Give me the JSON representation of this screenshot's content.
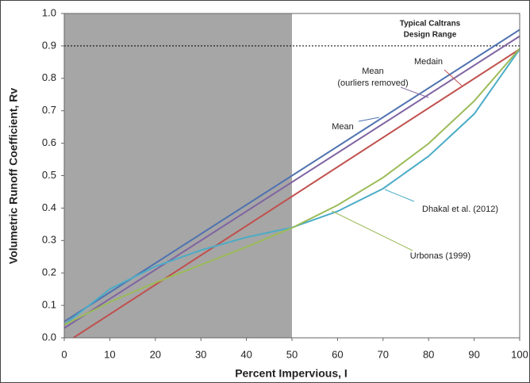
{
  "chart_data": {
    "type": "line",
    "x_label": "Percent Impervious, I",
    "y_label": "Volumetric Runoff Coefficient, Rv",
    "xlim": [
      0,
      100
    ],
    "ylim": [
      0,
      1
    ],
    "xticks": [
      0,
      10,
      20,
      30,
      40,
      50,
      60,
      70,
      80,
      90,
      100
    ],
    "yticks": [
      {
        "value": 0,
        "label": "0.0"
      },
      0.1,
      0.2,
      0.3,
      0.4,
      0.5,
      0.6,
      0.7,
      0.8,
      0.9,
      {
        "value": 1,
        "label": "1.0"
      }
    ],
    "shaded_x": [
      0,
      50
    ],
    "shade_color": "#a6a6a6",
    "reference_line": 0.9,
    "reference_label": [
      "Typical Caltrans",
      "Design Range"
    ],
    "series": [
      {
        "name": "Mean",
        "color": "#4f72b0",
        "x": [
          0,
          100
        ],
        "values": [
          0.05,
          0.95
        ]
      },
      {
        "name": "Mean (ourliers removed)",
        "label_lines": [
          "Mean",
          "(ourliers removed)"
        ],
        "color": "#8064a2",
        "x": [
          0,
          100
        ],
        "values": [
          0.03,
          0.93
        ]
      },
      {
        "name": "Medain",
        "color": "#c0504d",
        "x": [
          2,
          100
        ],
        "values": [
          0,
          0.89
        ]
      },
      {
        "name": "Dhakal et al. (2012)",
        "color": "#4bacc6",
        "x": [
          0,
          10,
          20,
          30,
          40,
          50,
          60,
          70,
          80,
          90,
          100
        ],
        "values": [
          0.04,
          0.15,
          0.22,
          0.27,
          0.31,
          0.34,
          0.39,
          0.46,
          0.56,
          0.69,
          0.89
        ]
      },
      {
        "name": "Urbonas (1999)",
        "color": "#9bbb59",
        "x": [
          0,
          10,
          20,
          30,
          40,
          50,
          60,
          70,
          80,
          90,
          100
        ],
        "values": [
          0.04,
          0.11,
          0.17,
          0.225,
          0.28,
          0.339,
          0.409,
          0.494,
          0.599,
          0.73,
          0.892
        ]
      }
    ]
  }
}
